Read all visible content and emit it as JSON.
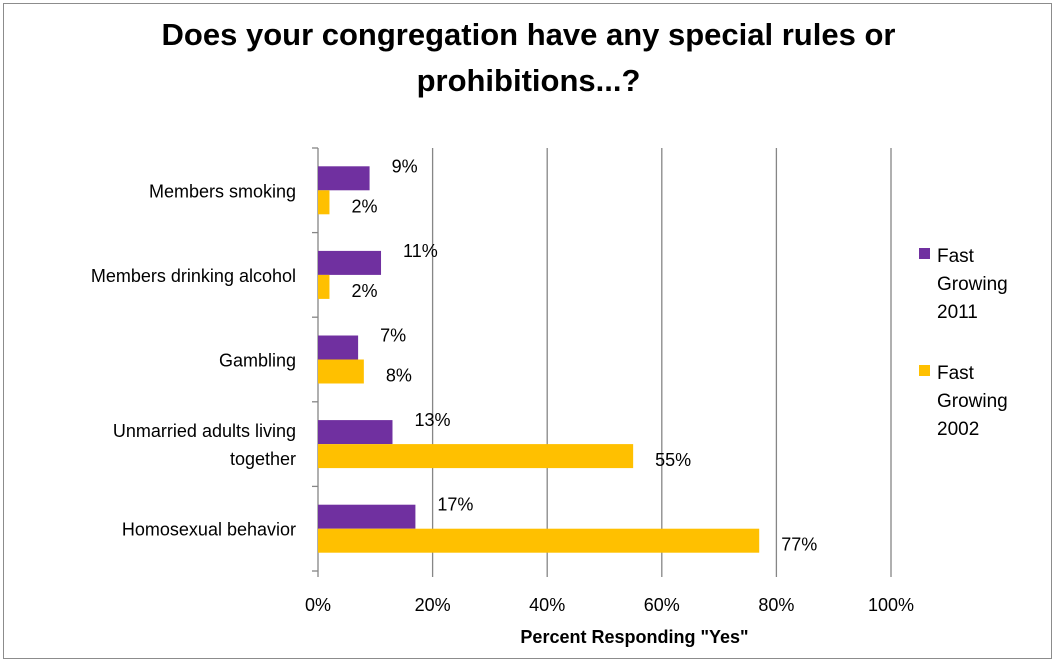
{
  "chart_data": {
    "type": "bar",
    "orientation": "horizontal",
    "title_lines": [
      "Does your congregation have any special rules or",
      "prohibitions...?"
    ],
    "xlabel": "Percent Responding \"Yes\"",
    "ylabel": "",
    "xlim": [
      0,
      100
    ],
    "x_ticks": [
      "0%",
      "20%",
      "40%",
      "60%",
      "80%",
      "100%"
    ],
    "categories": [
      [
        "Members smoking"
      ],
      [
        "Members drinking alcohol"
      ],
      [
        "Gambling"
      ],
      [
        "Unmarried adults living",
        "together"
      ],
      [
        "Homosexual behavior"
      ]
    ],
    "series": [
      {
        "name": [
          "Fast",
          "Growing",
          "2011"
        ],
        "color": "#7030a0",
        "values": [
          9,
          11,
          7,
          13,
          17
        ],
        "labels": [
          "9%",
          "11%",
          "7%",
          "13%",
          "17%"
        ]
      },
      {
        "name": [
          "Fast",
          "Growing",
          "2002"
        ],
        "color": "#ffc000",
        "values": [
          2,
          2,
          8,
          55,
          77
        ],
        "labels": [
          "2%",
          "2%",
          "8%",
          "55%",
          "77%"
        ]
      }
    ],
    "grid": "vertical",
    "legend_position": "right"
  }
}
